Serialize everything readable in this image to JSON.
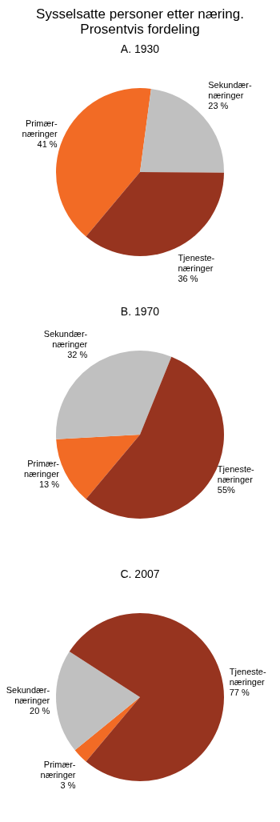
{
  "chart_data": [
    {
      "type": "pie",
      "title": "Sysselsatte personer etter næring. Prosentvis fordeling",
      "subtitle": "A. 1930",
      "categories": [
        "Primær-\nnæringer",
        "Sekundær-\nnæringer",
        "Tjeneste-\nnæringer"
      ],
      "values": [
        41,
        23,
        36
      ],
      "value_labels": [
        "41 %",
        "23 %",
        "36 %"
      ],
      "colors": [
        "#f26b25",
        "#c0c0c0",
        "#97341f"
      ],
      "legend": false
    },
    {
      "type": "pie",
      "title": "B. 1970",
      "categories": [
        "Primær-\nnæringer",
        "Sekundær-\nnæringer",
        "Tjeneste-\nnæringer"
      ],
      "values": [
        13,
        32,
        55
      ],
      "value_labels": [
        "13 %",
        "32 %",
        "55%"
      ],
      "colors": [
        "#f26b25",
        "#c0c0c0",
        "#97341f"
      ],
      "legend": false
    },
    {
      "type": "pie",
      "title": "C. 2007",
      "categories": [
        "Primær-\nnæringer",
        "Sekundær-\nnæringer",
        "Tjeneste-\nnæringer"
      ],
      "values": [
        3,
        20,
        77
      ],
      "value_labels": [
        "3 %",
        "20 %",
        "77 %"
      ],
      "colors": [
        "#f26b25",
        "#c0c0c0",
        "#97341f"
      ],
      "legend": false
    }
  ]
}
